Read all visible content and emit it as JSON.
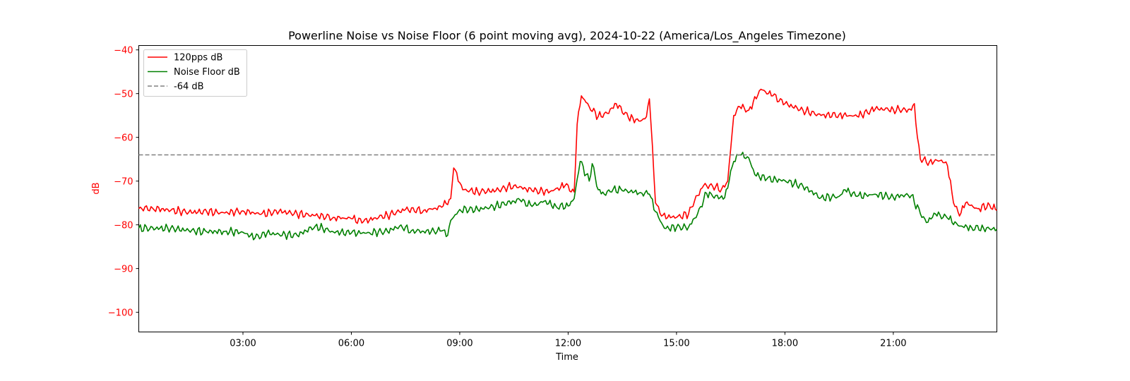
{
  "chart_data": {
    "type": "line",
    "title": "Powerline Noise vs Noise Floor (6 point moving avg), 2024-10-22 (America/Los_Angeles Timezone)",
    "xlabel": "Time",
    "ylabel": "dB",
    "xlim": [
      "00:07",
      "23:52"
    ],
    "ylim": [
      -104.5,
      -39
    ],
    "x_ticks": [
      "03:00",
      "06:00",
      "09:00",
      "12:00",
      "15:00",
      "18:00",
      "21:00"
    ],
    "y_ticks": [
      -40,
      -50,
      -60,
      -70,
      -80,
      -90,
      -100
    ],
    "legend_position": "upper-left",
    "grid": false,
    "colors": {
      "ylabel": "#ff0000",
      "axes": "#000000"
    },
    "series": [
      {
        "name": "120pps dB",
        "color": "#ff0000",
        "style": "solid",
        "points": [
          [
            "00:07",
            -76.3
          ],
          [
            "00:30",
            -76.2
          ],
          [
            "01:00",
            -76.7
          ],
          [
            "01:30",
            -77.1
          ],
          [
            "02:00",
            -77.0
          ],
          [
            "02:30",
            -77.3
          ],
          [
            "03:00",
            -76.8
          ],
          [
            "03:30",
            -77.6
          ],
          [
            "04:00",
            -76.9
          ],
          [
            "04:30",
            -77.5
          ],
          [
            "05:00",
            -77.9
          ],
          [
            "05:30",
            -78.3
          ],
          [
            "06:00",
            -78.6
          ],
          [
            "06:20",
            -79.3
          ],
          [
            "06:40",
            -78.4
          ],
          [
            "07:00",
            -77.8
          ],
          [
            "07:30",
            -76.5
          ],
          [
            "08:00",
            -76.7
          ],
          [
            "08:30",
            -76.0
          ],
          [
            "08:45",
            -74.0
          ],
          [
            "08:50",
            -67.0
          ],
          [
            "09:05",
            -72.0
          ],
          [
            "09:30",
            -72.4
          ],
          [
            "10:00",
            -72.2
          ],
          [
            "10:30",
            -71.0
          ],
          [
            "11:00",
            -72.2
          ],
          [
            "11:30",
            -72.4
          ],
          [
            "11:55",
            -71.0
          ],
          [
            "12:10",
            -72.5
          ],
          [
            "12:15",
            -57.0
          ],
          [
            "12:22",
            -50.5
          ],
          [
            "12:35",
            -53.0
          ],
          [
            "12:50",
            -55.2
          ],
          [
            "13:05",
            -54.5
          ],
          [
            "13:20",
            -52.3
          ],
          [
            "13:40",
            -55.5
          ],
          [
            "14:00",
            -56.3
          ],
          [
            "14:10",
            -55.3
          ],
          [
            "14:15",
            -51.2
          ],
          [
            "14:20",
            -62.0
          ],
          [
            "14:25",
            -75.0
          ],
          [
            "14:35",
            -78.0
          ],
          [
            "15:00",
            -78.3
          ],
          [
            "15:20",
            -77.5
          ],
          [
            "15:30",
            -74.5
          ],
          [
            "15:45",
            -71.0
          ],
          [
            "16:00",
            -71.2
          ],
          [
            "16:15",
            -71.8
          ],
          [
            "16:25",
            -70.0
          ],
          [
            "16:35",
            -55.0
          ],
          [
            "16:45",
            -53.0
          ],
          [
            "17:00",
            -53.8
          ],
          [
            "17:20",
            -49.0
          ],
          [
            "17:40",
            -50.5
          ],
          [
            "18:00",
            -52.3
          ],
          [
            "18:30",
            -53.8
          ],
          [
            "19:00",
            -55.0
          ],
          [
            "19:30",
            -54.8
          ],
          [
            "20:00",
            -55.2
          ],
          [
            "20:30",
            -53.5
          ],
          [
            "21:00",
            -53.6
          ],
          [
            "21:30",
            -53.8
          ],
          [
            "21:35",
            -52.3
          ],
          [
            "21:40",
            -60.0
          ],
          [
            "21:45",
            -65.0
          ],
          [
            "22:00",
            -65.6
          ],
          [
            "22:20",
            -65.2
          ],
          [
            "22:30",
            -66.5
          ],
          [
            "22:40",
            -75.0
          ],
          [
            "22:50",
            -78.0
          ],
          [
            "23:00",
            -75.0
          ],
          [
            "23:20",
            -76.3
          ],
          [
            "23:40",
            -75.5
          ],
          [
            "23:52",
            -76.7
          ]
        ]
      },
      {
        "name": "Noise Floor dB",
        "color": "#008000",
        "style": "solid",
        "points": [
          [
            "00:07",
            -80.8
          ],
          [
            "01:00",
            -80.8
          ],
          [
            "01:30",
            -81.3
          ],
          [
            "02:00",
            -81.6
          ],
          [
            "02:30",
            -81.5
          ],
          [
            "03:00",
            -81.7
          ],
          [
            "03:20",
            -83.0
          ],
          [
            "03:40",
            -81.9
          ],
          [
            "04:00",
            -82.2
          ],
          [
            "04:30",
            -82.4
          ],
          [
            "05:00",
            -80.3
          ],
          [
            "05:30",
            -81.6
          ],
          [
            "06:00",
            -81.9
          ],
          [
            "06:30",
            -81.8
          ],
          [
            "07:00",
            -81.5
          ],
          [
            "07:20",
            -80.3
          ],
          [
            "07:40",
            -81.3
          ],
          [
            "08:00",
            -81.5
          ],
          [
            "08:30",
            -81.4
          ],
          [
            "08:40",
            -82.4
          ],
          [
            "08:45",
            -79.0
          ],
          [
            "09:00",
            -76.5
          ],
          [
            "09:30",
            -76.5
          ],
          [
            "10:00",
            -75.7
          ],
          [
            "10:30",
            -74.6
          ],
          [
            "10:40",
            -74.3
          ],
          [
            "11:00",
            -75.8
          ],
          [
            "11:20",
            -74.6
          ],
          [
            "11:40",
            -75.8
          ],
          [
            "12:00",
            -75.7
          ],
          [
            "12:10",
            -74.0
          ],
          [
            "12:20",
            -65.5
          ],
          [
            "12:35",
            -70.0
          ],
          [
            "12:40",
            -66.0
          ],
          [
            "12:50",
            -72.0
          ],
          [
            "13:00",
            -73.0
          ],
          [
            "13:15",
            -71.8
          ],
          [
            "13:30",
            -72.2
          ],
          [
            "14:00",
            -72.6
          ],
          [
            "14:15",
            -73.0
          ],
          [
            "14:25",
            -77.0
          ],
          [
            "14:40",
            -80.8
          ],
          [
            "15:00",
            -80.6
          ],
          [
            "15:20",
            -80.5
          ],
          [
            "15:35",
            -77.5
          ],
          [
            "15:50",
            -72.8
          ],
          [
            "16:00",
            -73.5
          ],
          [
            "16:20",
            -73.8
          ],
          [
            "16:35",
            -65.5
          ],
          [
            "16:45",
            -64.0
          ],
          [
            "17:00",
            -64.7
          ],
          [
            "17:10",
            -68.5
          ],
          [
            "17:30",
            -69.5
          ],
          [
            "18:00",
            -69.9
          ],
          [
            "18:30",
            -71.2
          ],
          [
            "19:00",
            -73.8
          ],
          [
            "19:30",
            -73.5
          ],
          [
            "19:40",
            -72.0
          ],
          [
            "20:00",
            -73.5
          ],
          [
            "20:30",
            -73.0
          ],
          [
            "21:00",
            -73.7
          ],
          [
            "21:15",
            -73.2
          ],
          [
            "21:30",
            -73.3
          ],
          [
            "21:45",
            -77.5
          ],
          [
            "21:55",
            -79.5
          ],
          [
            "22:10",
            -77.5
          ],
          [
            "22:30",
            -78.5
          ],
          [
            "22:50",
            -80.3
          ],
          [
            "23:10",
            -80.6
          ],
          [
            "23:30",
            -80.8
          ],
          [
            "23:52",
            -81.0
          ]
        ]
      },
      {
        "name": "-64 dB",
        "color": "#808080",
        "style": "dashed",
        "points": [
          [
            "00:07",
            -64
          ],
          [
            "23:52",
            -64
          ]
        ]
      }
    ]
  }
}
